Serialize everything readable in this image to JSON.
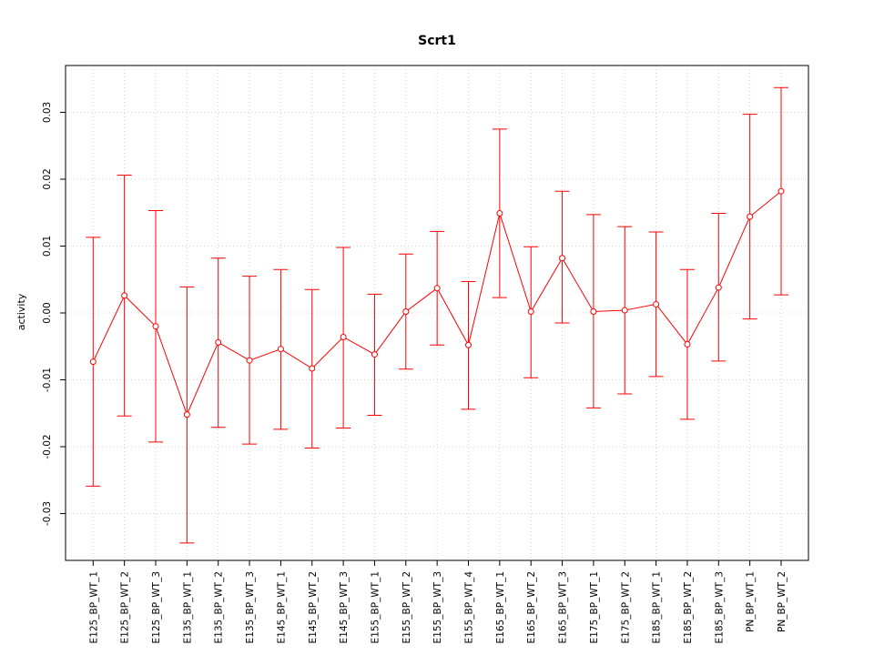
{
  "chart_data": {
    "type": "line",
    "title": "Scrt1",
    "xlabel": "",
    "ylabel": "activity",
    "ylim": [
      -0.037,
      0.037
    ],
    "yticks": [
      -0.03,
      -0.02,
      -0.01,
      0.0,
      0.01,
      0.02,
      0.03
    ],
    "ytick_labels": [
      "-0.03",
      "-0.02",
      "-0.01",
      "0.00",
      "0.01",
      "0.02",
      "0.03"
    ],
    "grid": true,
    "series_color": "#ff0000",
    "grid_color": "#d3d3d3",
    "categories": [
      "E125_BP_WT_1",
      "E125_BP_WT_2",
      "E125_BP_WT_3",
      "E135_BP_WT_1",
      "E135_BP_WT_2",
      "E135_BP_WT_3",
      "E145_BP_WT_1",
      "E145_BP_WT_2",
      "E145_BP_WT_3",
      "E155_BP_WT_1",
      "E155_BP_WT_2",
      "E155_BP_WT_3",
      "E155_BP_WT_4",
      "E165_BP_WT_1",
      "E165_BP_WT_2",
      "E165_BP_WT_3",
      "E175_BP_WT_1",
      "E175_BP_WT_2",
      "E185_BP_WT_1",
      "E185_BP_WT_2",
      "E185_BP_WT_3",
      "PN_BP_WT_1",
      "PN_BP_WT_2"
    ],
    "values": [
      -0.0073,
      0.0026,
      -0.002,
      -0.0152,
      -0.0044,
      -0.0071,
      -0.0054,
      -0.0083,
      -0.0036,
      -0.0062,
      0.0002,
      0.0037,
      -0.0048,
      0.0149,
      0.0002,
      0.0082,
      0.0002,
      0.0004,
      0.0013,
      -0.0047,
      0.0038,
      0.0144,
      0.0182
    ],
    "upper": [
      0.0113,
      0.0206,
      0.0153,
      0.0039,
      0.0082,
      0.0055,
      0.0065,
      0.0035,
      0.0098,
      0.0028,
      0.0088,
      0.0122,
      0.0047,
      0.0275,
      0.0099,
      0.0182,
      0.0147,
      0.0129,
      0.0121,
      0.0065,
      0.0149,
      0.0297,
      0.0337
    ],
    "lower": [
      -0.0259,
      -0.0154,
      -0.0193,
      -0.0344,
      -0.0171,
      -0.0196,
      -0.0174,
      -0.0202,
      -0.0172,
      -0.0153,
      -0.0084,
      -0.0048,
      -0.0144,
      0.0023,
      -0.0097,
      -0.0015,
      -0.0142,
      -0.0121,
      -0.0095,
      -0.0159,
      -0.0072,
      -0.0009,
      0.0027
    ]
  }
}
